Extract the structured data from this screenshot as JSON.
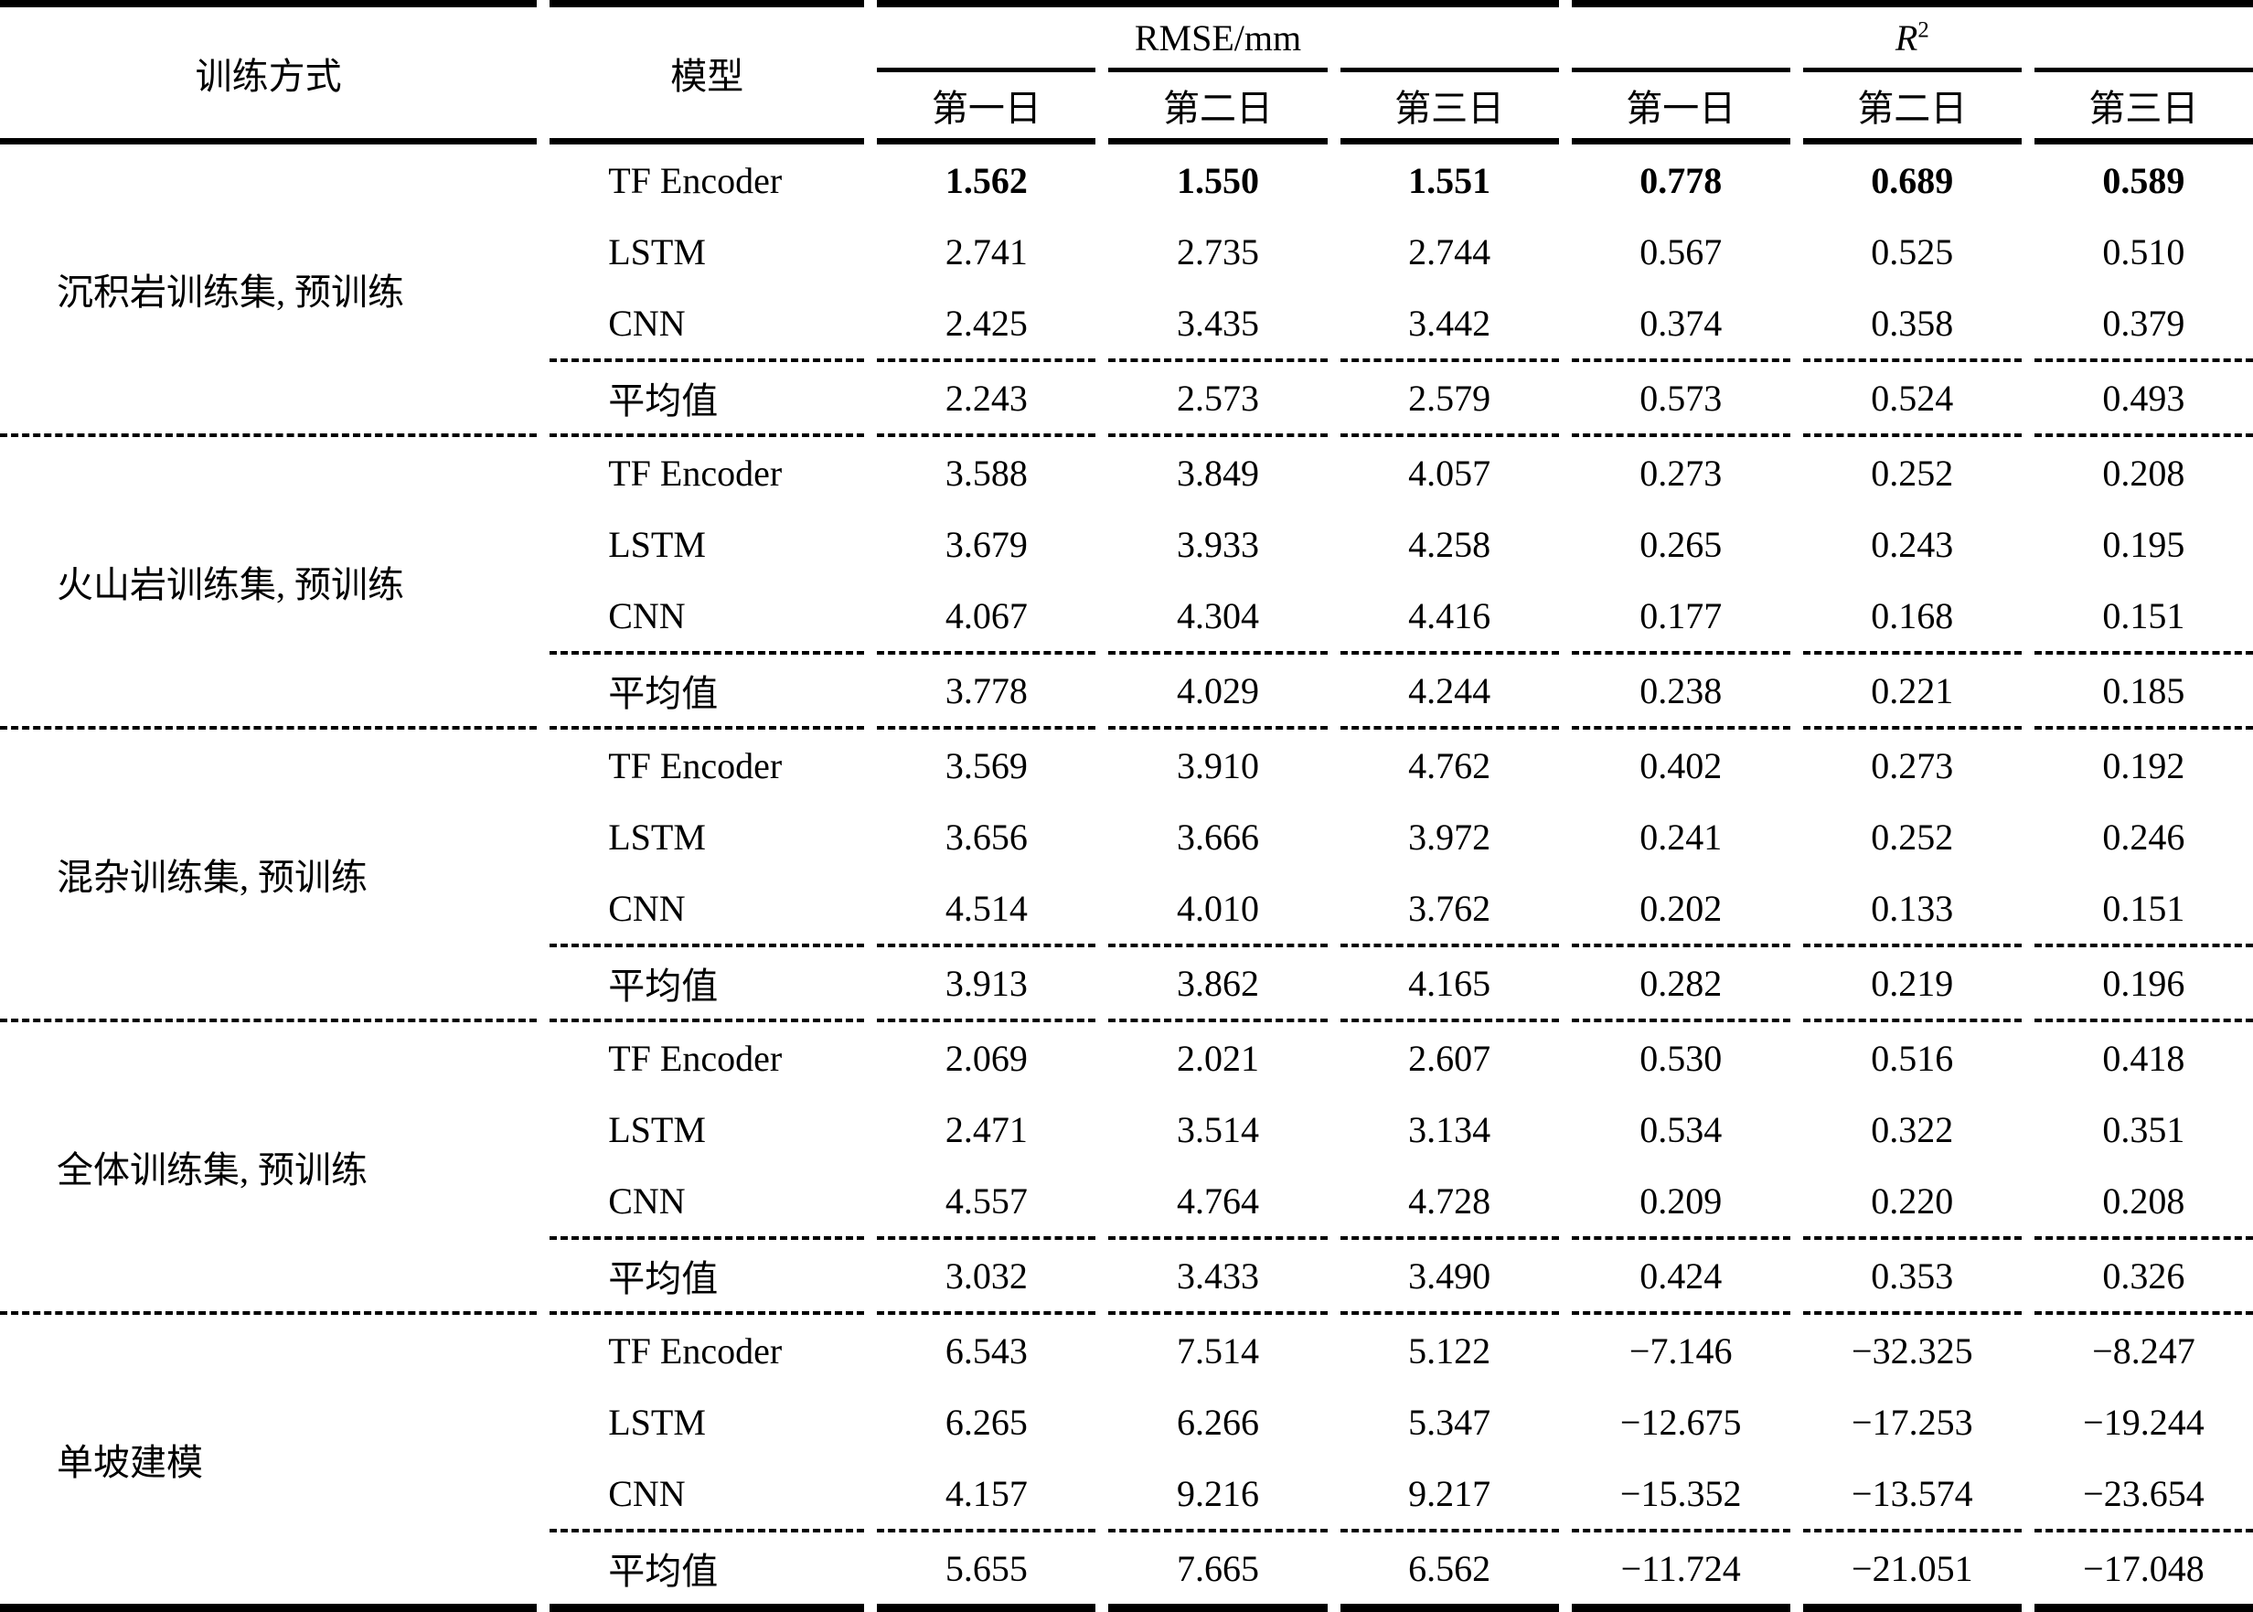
{
  "table": {
    "headers": {
      "training_method": "训练方式",
      "model": "模型",
      "rmse_group": "RMSE/mm",
      "r2_base": "R",
      "r2_sup": "2",
      "day_cols": [
        "第一日",
        "第二日",
        "第三日",
        "第一日",
        "第二日",
        "第三日"
      ]
    },
    "groups": [
      {
        "method": "沉积岩训练集, 预训练",
        "rows": [
          {
            "model": "TF Encoder",
            "bold": true,
            "values": [
              "1.562",
              "1.550",
              "1.551",
              "0.778",
              "0.689",
              "0.589"
            ]
          },
          {
            "model": "LSTM",
            "bold": false,
            "values": [
              "2.741",
              "2.735",
              "2.744",
              "0.567",
              "0.525",
              "0.510"
            ]
          },
          {
            "model": "CNN",
            "bold": false,
            "values": [
              "2.425",
              "3.435",
              "3.442",
              "0.374",
              "0.358",
              "0.379"
            ]
          },
          {
            "model": "平均值",
            "bold": false,
            "values": [
              "2.243",
              "2.573",
              "2.579",
              "0.573",
              "0.524",
              "0.493"
            ]
          }
        ]
      },
      {
        "method": "火山岩训练集, 预训练",
        "rows": [
          {
            "model": "TF Encoder",
            "bold": false,
            "values": [
              "3.588",
              "3.849",
              "4.057",
              "0.273",
              "0.252",
              "0.208"
            ]
          },
          {
            "model": "LSTM",
            "bold": false,
            "values": [
              "3.679",
              "3.933",
              "4.258",
              "0.265",
              "0.243",
              "0.195"
            ]
          },
          {
            "model": "CNN",
            "bold": false,
            "values": [
              "4.067",
              "4.304",
              "4.416",
              "0.177",
              "0.168",
              "0.151"
            ]
          },
          {
            "model": "平均值",
            "bold": false,
            "values": [
              "3.778",
              "4.029",
              "4.244",
              "0.238",
              "0.221",
              "0.185"
            ]
          }
        ]
      },
      {
        "method": "混杂训练集, 预训练",
        "rows": [
          {
            "model": "TF Encoder",
            "bold": false,
            "values": [
              "3.569",
              "3.910",
              "4.762",
              "0.402",
              "0.273",
              "0.192"
            ]
          },
          {
            "model": "LSTM",
            "bold": false,
            "values": [
              "3.656",
              "3.666",
              "3.972",
              "0.241",
              "0.252",
              "0.246"
            ]
          },
          {
            "model": "CNN",
            "bold": false,
            "values": [
              "4.514",
              "4.010",
              "3.762",
              "0.202",
              "0.133",
              "0.151"
            ]
          },
          {
            "model": "平均值",
            "bold": false,
            "values": [
              "3.913",
              "3.862",
              "4.165",
              "0.282",
              "0.219",
              "0.196"
            ]
          }
        ]
      },
      {
        "method": "全体训练集, 预训练",
        "rows": [
          {
            "model": "TF Encoder",
            "bold": false,
            "values": [
              "2.069",
              "2.021",
              "2.607",
              "0.530",
              "0.516",
              "0.418"
            ]
          },
          {
            "model": "LSTM",
            "bold": false,
            "values": [
              "2.471",
              "3.514",
              "3.134",
              "0.534",
              "0.322",
              "0.351"
            ]
          },
          {
            "model": "CNN",
            "bold": false,
            "values": [
              "4.557",
              "4.764",
              "4.728",
              "0.209",
              "0.220",
              "0.208"
            ]
          },
          {
            "model": "平均值",
            "bold": false,
            "values": [
              "3.032",
              "3.433",
              "3.490",
              "0.424",
              "0.353",
              "0.326"
            ]
          }
        ]
      },
      {
        "method": "单坡建模",
        "rows": [
          {
            "model": "TF Encoder",
            "bold": false,
            "values": [
              "6.543",
              "7.514",
              "5.122",
              "−7.146",
              "−32.325",
              "−8.247"
            ]
          },
          {
            "model": "LSTM",
            "bold": false,
            "values": [
              "6.265",
              "6.266",
              "5.347",
              "−12.675",
              "−17.253",
              "−19.244"
            ]
          },
          {
            "model": "CNN",
            "bold": false,
            "values": [
              "4.157",
              "9.216",
              "9.217",
              "−15.352",
              "−13.574",
              "−23.654"
            ]
          },
          {
            "model": "平均值",
            "bold": false,
            "values": [
              "5.655",
              "7.665",
              "6.562",
              "−11.724",
              "−21.051",
              "−17.048"
            ]
          }
        ]
      }
    ]
  }
}
